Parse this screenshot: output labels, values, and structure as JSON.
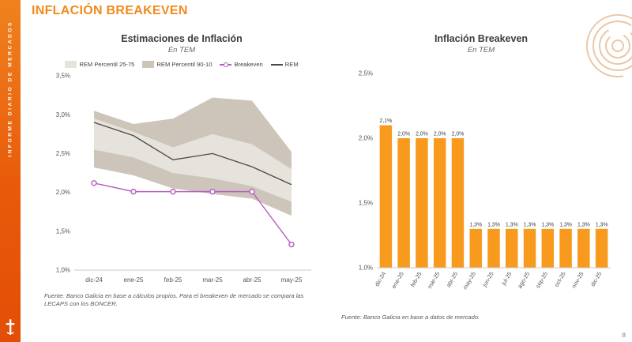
{
  "sidebar": {
    "vertical_text": "INFORME DIARIO DE MERCADOS"
  },
  "header": {
    "title": "INFLACIÓN BREAKEVEN"
  },
  "footer": {
    "page_number": "8"
  },
  "colors": {
    "accent_orange": "#F28A1C",
    "sidebar_orange": "#E85A0A",
    "bar_orange": "#F79A1E",
    "breakeven_purple": "#B75FC1",
    "rem_line": "#4A4A4A",
    "band_25_75": "#E6E2DC",
    "band_90_10": "#CDC5BA"
  },
  "chart_data": [
    {
      "type": "line",
      "title": "Estimaciones de Inflación",
      "subtitle": "En TEM",
      "categories": [
        "dic-24",
        "ene-25",
        "feb-25",
        "mar-25",
        "abr-25",
        "may-25"
      ],
      "ylim": [
        1.0,
        3.5
      ],
      "yticks": [
        {
          "v": 1.0,
          "label": "1,0%"
        },
        {
          "v": 1.5,
          "label": "1,5%"
        },
        {
          "v": 2.0,
          "label": "2,0%"
        },
        {
          "v": 2.5,
          "label": "2,5%"
        },
        {
          "v": 3.0,
          "label": "3,0%"
        },
        {
          "v": 3.5,
          "label": "3,5%"
        }
      ],
      "series": [
        {
          "name": "REM Percentil 90-10",
          "kind": "band",
          "color": "#CDC5BA",
          "upper": [
            3.05,
            2.88,
            2.95,
            3.22,
            3.18,
            2.52
          ],
          "lower": [
            2.32,
            2.22,
            2.05,
            1.98,
            1.92,
            1.7
          ]
        },
        {
          "name": "REM Percentil 25-75",
          "kind": "band",
          "color": "#E6E2DC",
          "upper": [
            2.95,
            2.78,
            2.58,
            2.75,
            2.62,
            2.3
          ],
          "lower": [
            2.55,
            2.45,
            2.25,
            2.18,
            2.08,
            1.88
          ]
        },
        {
          "name": "REM",
          "kind": "line",
          "color": "#4A4A4A",
          "values": [
            2.9,
            2.73,
            2.42,
            2.5,
            2.33,
            2.1
          ]
        },
        {
          "name": "Breakeven",
          "kind": "line-marker",
          "color": "#B75FC1",
          "values": [
            2.12,
            2.01,
            2.01,
            2.01,
            2.01,
            1.33
          ]
        }
      ],
      "legend": [
        {
          "type": "band",
          "color": "#E6E2DC",
          "label": "REM Percentil 25-75"
        },
        {
          "type": "band",
          "color": "#CDC5BA",
          "label": "REM Percentil 90-10"
        },
        {
          "type": "marker-line",
          "color": "#B75FC1",
          "label": "Breakeven"
        },
        {
          "type": "line",
          "color": "#4A4A4A",
          "label": "REM"
        }
      ],
      "legend_position": "top",
      "grid": false,
      "source": "Fuente: Banco Galicia en base a cálculos propios. Para el breakeven de mercado se compara las LECAPS con los BONCER."
    },
    {
      "type": "bar",
      "title": "Inflación Breakeven",
      "subtitle": "En TEM",
      "categories": [
        "dic-24",
        "ene-25",
        "feb-25",
        "mar-25",
        "abr-25",
        "may-25",
        "jun-25",
        "jul-25",
        "ago-25",
        "sep-25",
        "oct-25",
        "nov-25",
        "dic-25"
      ],
      "values": [
        2.1,
        2.0,
        2.0,
        2.0,
        2.0,
        1.3,
        1.3,
        1.3,
        1.3,
        1.3,
        1.3,
        1.3,
        1.3
      ],
      "labels": [
        "2,1%",
        "2,0%",
        "2,0%",
        "2,0%",
        "2,0%",
        "1,3%",
        "1,3%",
        "1,3%",
        "1,3%",
        "1,3%",
        "1,3%",
        "1,3%",
        "1,3%"
      ],
      "ylim": [
        1.0,
        2.5
      ],
      "yticks": [
        {
          "v": 1.0,
          "label": "1,0%"
        },
        {
          "v": 1.5,
          "label": "1,5%"
        },
        {
          "v": 2.0,
          "label": "2,0%"
        },
        {
          "v": 2.5,
          "label": "2,5%"
        }
      ],
      "bar_color": "#F79A1E",
      "grid": false,
      "source": "Fuente: Banco Galicia en base a datos de mercado."
    }
  ]
}
